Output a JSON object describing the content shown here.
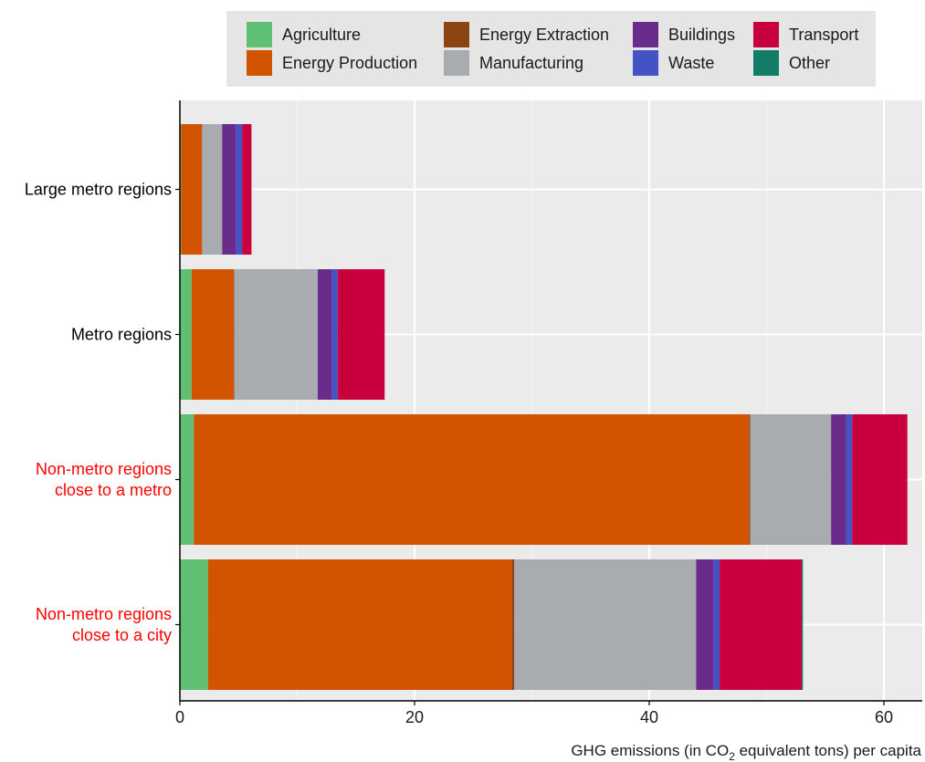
{
  "chart_data": {
    "type": "bar",
    "orientation": "horizontal",
    "stacked": true,
    "categories": [
      "Large metro regions",
      "Metro regions",
      "Non-metro regions\nclose to a metro",
      "Non-metro regions\nclose to a city"
    ],
    "category_colors": [
      "#000000",
      "#000000",
      "#ff0000",
      "#ff0000"
    ],
    "series": [
      {
        "name": "Agriculture",
        "color": "#5fbf72",
        "values": [
          0.1,
          1.0,
          1.2,
          2.4
        ]
      },
      {
        "name": "Energy Production",
        "color": "#d35400",
        "values": [
          1.8,
          3.6,
          47.3,
          25.9
        ]
      },
      {
        "name": "Energy Extraction",
        "color": "#8b4513",
        "values": [
          0.0,
          0.05,
          0.1,
          0.2
        ]
      },
      {
        "name": "Manufacturing",
        "color": "#a8abb0",
        "values": [
          1.7,
          7.1,
          6.9,
          15.5
        ]
      },
      {
        "name": "Buildings",
        "color": "#6a2c8a",
        "values": [
          1.2,
          1.2,
          1.3,
          1.5
        ]
      },
      {
        "name": "Waste",
        "color": "#4353c5",
        "values": [
          0.5,
          0.5,
          0.5,
          0.5
        ]
      },
      {
        "name": "Transport",
        "color": "#c8003e",
        "values": [
          0.8,
          4.0,
          4.7,
          7.0
        ]
      },
      {
        "name": "Other",
        "color": "#127d66",
        "values": [
          0.0,
          0.0,
          0.0,
          0.1
        ]
      }
    ],
    "legend_layout": [
      [
        "Agriculture",
        "Energy Production"
      ],
      [
        "Energy Extraction",
        "Manufacturing"
      ],
      [
        "Buildings",
        "Waste"
      ],
      [
        "Transport",
        "Other"
      ]
    ],
    "xlim": [
      0,
      63
    ],
    "xticks": [
      0,
      20,
      40,
      60
    ],
    "xlabel_parts": [
      "GHG emissions (in CO",
      "2",
      " equivalent tons) per capita"
    ],
    "grid": true,
    "legend_position": "top"
  }
}
